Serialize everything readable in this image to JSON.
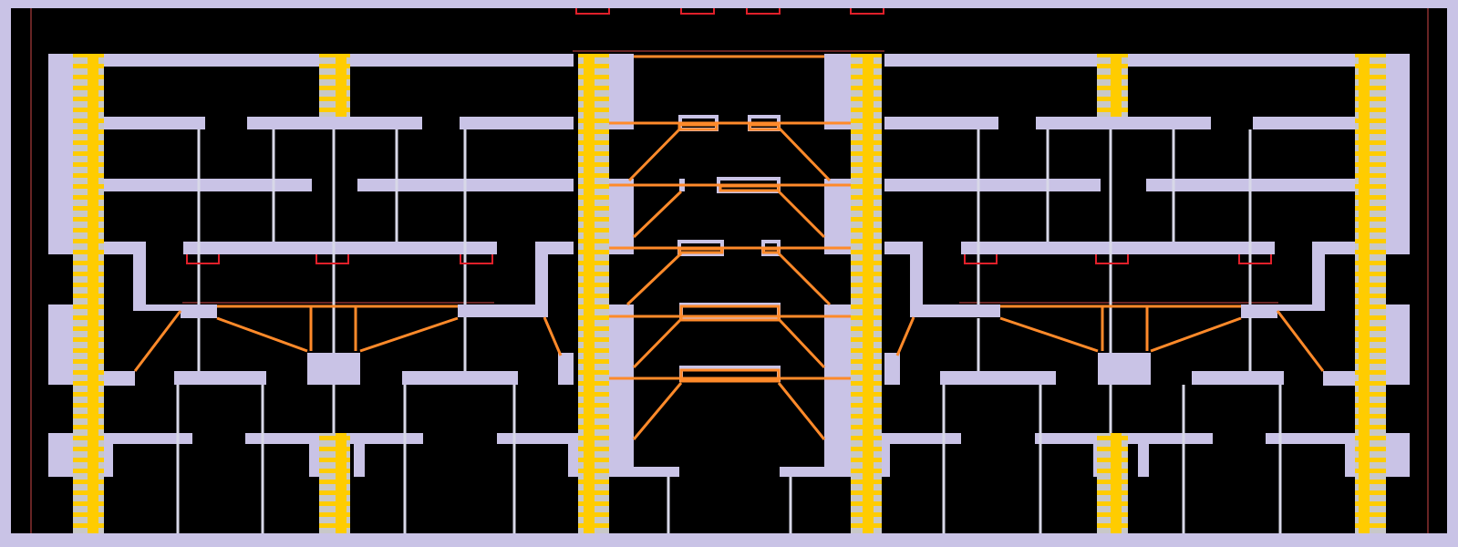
{
  "level": {
    "background": "#000000",
    "wall_color": "#c9c3e6",
    "ladder_rail_color": "#ffcc00",
    "ladder_rung_color": "#c8c8c8",
    "pole_color": "#d8d8e8",
    "rope_color": "#ff8a2a",
    "hazard_color": "#e0202a",
    "boundary_line_color": "#8a3030",
    "counts": {
      "ladders": 10,
      "hazard_markers": 10,
      "rope_bridges": 5
    }
  }
}
